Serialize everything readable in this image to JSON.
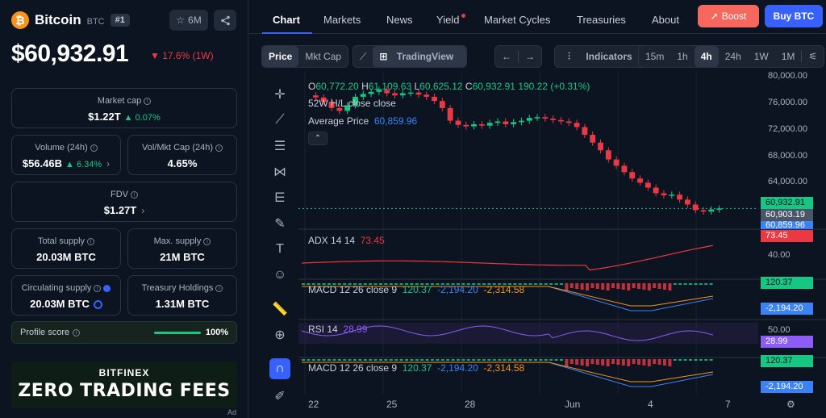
{
  "coin": {
    "name": "Bitcoin",
    "symbol": "BTC",
    "rank": "#1",
    "watchlist_count": "6M",
    "price": "$60,932.91",
    "change": "17.6% (1W)"
  },
  "stats": {
    "market_cap": {
      "label": "Market cap",
      "value": "$1.22T",
      "change": "0.07%"
    },
    "volume": {
      "label": "Volume (24h)",
      "value": "$56.46B",
      "change": "6.34%"
    },
    "vol_mkt": {
      "label": "Vol/Mkt Cap (24h)",
      "value": "4.65%"
    },
    "fdv": {
      "label": "FDV",
      "value": "$1.27T"
    },
    "total_supply": {
      "label": "Total supply",
      "value": "20.03M BTC"
    },
    "max_supply": {
      "label": "Max. supply",
      "value": "21M BTC"
    },
    "circ_supply": {
      "label": "Circulating supply",
      "value": "20.03M BTC"
    },
    "treasury": {
      "label": "Treasury Holdings",
      "value": "1.31M BTC"
    }
  },
  "profile": {
    "label": "Profile score",
    "value": "100%",
    "fill": 1.0
  },
  "ad": {
    "brand": "BITFINEX",
    "slogan": "ZERO TRADING FEES",
    "label": "Ad"
  },
  "nav": {
    "tabs": [
      "Chart",
      "Markets",
      "News",
      "Yield",
      "Market Cycles",
      "Treasuries",
      "About"
    ],
    "boost": "Boost",
    "buy": "Buy BTC"
  },
  "toolbar": {
    "price": "Price",
    "mkt_cap": "Mkt Cap",
    "tradingview": "TradingView",
    "indicators": "Indicators",
    "intervals": [
      "15m",
      "1h",
      "4h",
      "24h",
      "1W",
      "1M"
    ],
    "active_interval": "4h"
  },
  "chart_data": {
    "type": "candlestick",
    "ohlc": {
      "o_label": "O",
      "o": "60,772.20",
      "h_label": "H",
      "h": "61,109.63",
      "l_label": "L",
      "l": "60,625.12",
      "c_label": "C",
      "c": "60,932.91",
      "chg": "190.22 (+0.31%)"
    },
    "legend_52w": "52W H/L close close",
    "avg_price": {
      "label": "Average Price",
      "value": "60,859.96"
    },
    "y_ticks": [
      "80,000.00",
      "76,000.00",
      "72,000.00",
      "68,000.00",
      "64,000.00"
    ],
    "price_tags": [
      "60,932.91",
      "60,903.19",
      "60,859.96"
    ],
    "x_ticks": [
      "22",
      "25",
      "28",
      "Jun",
      "4",
      "7"
    ],
    "closes": [
      76700,
      76100,
      75200,
      74800,
      75600,
      76800,
      77200,
      77500,
      77800,
      77300,
      77000,
      77300,
      77400,
      77100,
      76800,
      76200,
      75200,
      73400,
      72800,
      72600,
      72900,
      72700,
      73100,
      73300,
      72900,
      73200,
      73400,
      73800,
      73900,
      73700,
      73500,
      73300,
      73100,
      72500,
      71400,
      70300,
      69200,
      67900,
      67000,
      66100,
      65200,
      64600,
      63900,
      63100,
      62800,
      62900,
      62200,
      61500,
      60700,
      60500,
      60800,
      60932
    ],
    "adx": {
      "label": "ADX",
      "params": "14 14",
      "value": "73.45",
      "tick": "40.00"
    },
    "macd1": {
      "label": "MACD",
      "params": "12 26 close 9",
      "v1": "120.37",
      "v2": "-2,194.20",
      "v3": "-2,314.58"
    },
    "rsi": {
      "label": "RSI",
      "params": "14",
      "value": "28.99",
      "tick": "50.00"
    },
    "macd2": {
      "label": "MACD",
      "params": "12 26 close 9",
      "v1": "120.37",
      "v2": "-2,194.20",
      "v3": "-2,314.58"
    },
    "tag_colors": {
      "price": "#16c784",
      "prev": "#4a5568",
      "avg": "#3b82f6",
      "adx": "#ea3943",
      "macd": "#16c784",
      "signal": "#3b82f6",
      "rsi": "#8b5cf6"
    }
  }
}
